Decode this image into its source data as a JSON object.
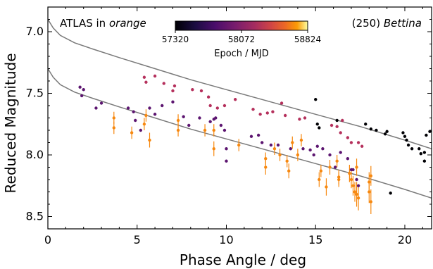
{
  "chart_data": {
    "type": "scatter",
    "xlabel": "Phase Angle / deg",
    "ylabel": "Reduced Magnitude",
    "xlim": [
      0,
      21.5
    ],
    "ylim": [
      8.6,
      6.8
    ],
    "y_inverted": true,
    "xticks": [
      0,
      5,
      10,
      15,
      20
    ],
    "yticks": [
      7.0,
      7.5,
      8.0,
      8.5
    ],
    "grid": false,
    "annotations": {
      "left_prefix": "ATLAS in ",
      "left_italic": "orange",
      "right_prefix": "(250) ",
      "right_italic": "Bettina"
    },
    "colorbar": {
      "label": "Epoch / MJD",
      "min": 57320,
      "max": 58824,
      "ticks": [
        "57320",
        "58072",
        "58824"
      ],
      "colormap": "inferno"
    },
    "model_curves": [
      {
        "x": [
          0,
          0.3,
          0.7,
          1.5,
          2.5,
          4,
          6,
          8,
          10,
          12.5,
          15,
          17.5,
          20,
          21.5
        ],
        "y": [
          6.9,
          6.97,
          7.03,
          7.09,
          7.14,
          7.21,
          7.3,
          7.39,
          7.47,
          7.57,
          7.67,
          7.77,
          7.88,
          7.95
        ]
      },
      {
        "x": [
          0,
          0.3,
          0.7,
          1.5,
          2.5,
          4,
          6,
          8,
          10,
          12.5,
          15,
          17.5,
          20,
          21.5
        ],
        "y": [
          7.3,
          7.37,
          7.43,
          7.49,
          7.54,
          7.61,
          7.7,
          7.79,
          7.87,
          7.97,
          8.07,
          8.17,
          8.28,
          8.35
        ]
      }
    ],
    "series": [
      {
        "name": "ATLAS",
        "color": "#f7880f",
        "points": [
          [
            3.7,
            7.7,
            0.05
          ],
          [
            3.7,
            7.78,
            0.05
          ],
          [
            4.7,
            7.82,
            0.05
          ],
          [
            5.4,
            7.75,
            0.05
          ],
          [
            5.5,
            7.68,
            0.05
          ],
          [
            5.7,
            7.88,
            0.06
          ],
          [
            7.3,
            7.72,
            0.05
          ],
          [
            7.3,
            7.8,
            0.05
          ],
          [
            8.8,
            7.8,
            0.05
          ],
          [
            9.3,
            7.8,
            0.05
          ],
          [
            9.3,
            7.95,
            0.06
          ],
          [
            10.7,
            7.92,
            0.05
          ],
          [
            12.2,
            8.03,
            0.05
          ],
          [
            12.2,
            8.1,
            0.06
          ],
          [
            12.7,
            7.95,
            0.05
          ],
          [
            13.0,
            8.0,
            0.05
          ],
          [
            13.4,
            8.05,
            0.05
          ],
          [
            13.5,
            8.13,
            0.06
          ],
          [
            13.7,
            7.9,
            0.05
          ],
          [
            14.0,
            8.0,
            0.05
          ],
          [
            14.2,
            7.88,
            0.05
          ],
          [
            15.2,
            8.2,
            0.06
          ],
          [
            15.3,
            8.13,
            0.05
          ],
          [
            15.6,
            8.26,
            0.07
          ],
          [
            15.8,
            8.1,
            0.06
          ],
          [
            16.2,
            8.05,
            0.05
          ],
          [
            16.3,
            8.18,
            0.06
          ],
          [
            16.3,
            8.2,
            0.06
          ],
          [
            16.9,
            8.15,
            0.07
          ],
          [
            17.0,
            8.2,
            0.07
          ],
          [
            17.1,
            8.25,
            0.08
          ],
          [
            17.2,
            8.3,
            0.08
          ],
          [
            17.3,
            8.1,
            0.07
          ],
          [
            17.3,
            8.32,
            0.1
          ],
          [
            17.4,
            8.35,
            0.1
          ],
          [
            18.0,
            8.22,
            0.08
          ],
          [
            18.0,
            8.3,
            0.09
          ],
          [
            18.1,
            8.38,
            0.1
          ],
          [
            18.1,
            8.17,
            0.08
          ]
        ]
      },
      {
        "name": "epoch",
        "color": "#5c1570",
        "points": [
          [
            1.8,
            7.45
          ],
          [
            2.0,
            7.47
          ],
          [
            1.9,
            7.52
          ],
          [
            2.7,
            7.62
          ],
          [
            3.0,
            7.58
          ],
          [
            4.5,
            7.62
          ],
          [
            4.8,
            7.65
          ],
          [
            4.9,
            7.72
          ],
          [
            5.2,
            7.8
          ],
          [
            5.7,
            7.62
          ],
          [
            6.0,
            7.67
          ],
          [
            6.4,
            7.6
          ],
          [
            7.0,
            7.57
          ],
          [
            7.6,
            7.69
          ],
          [
            7.9,
            7.76
          ],
          [
            8.5,
            7.7
          ],
          [
            9.1,
            7.73
          ],
          [
            9.3,
            7.71
          ],
          [
            9.4,
            7.7
          ],
          [
            9.7,
            7.76
          ],
          [
            9.9,
            7.8
          ],
          [
            10.0,
            7.95
          ],
          [
            10.0,
            8.05
          ],
          [
            11.4,
            7.85
          ],
          [
            11.8,
            7.84
          ],
          [
            12.0,
            7.9
          ],
          [
            12.5,
            7.92
          ],
          [
            12.9,
            7.92
          ],
          [
            13.6,
            7.95
          ],
          [
            14.3,
            7.95
          ],
          [
            14.7,
            7.96
          ],
          [
            14.9,
            8.0
          ],
          [
            15.1,
            7.93
          ],
          [
            15.4,
            7.95
          ],
          [
            15.8,
            8.0
          ],
          [
            16.1,
            8.1
          ],
          [
            16.4,
            7.98
          ],
          [
            16.8,
            8.03
          ],
          [
            17.0,
            8.12
          ],
          [
            17.1,
            8.12
          ],
          [
            17.3,
            8.2
          ],
          [
            17.4,
            8.25
          ]
        ]
      },
      {
        "name": "epoch",
        "color": "#b5305c",
        "points": [
          [
            5.4,
            7.37
          ],
          [
            6.0,
            7.36
          ],
          [
            5.5,
            7.41
          ],
          [
            6.5,
            7.42
          ],
          [
            7.0,
            7.48
          ],
          [
            7.1,
            7.44
          ],
          [
            8.1,
            7.47
          ],
          [
            8.6,
            7.48
          ],
          [
            9.0,
            7.53
          ],
          [
            9.1,
            7.6
          ],
          [
            9.5,
            7.62
          ],
          [
            9.9,
            7.6
          ],
          [
            10.5,
            7.55
          ],
          [
            11.5,
            7.63
          ],
          [
            11.9,
            7.67
          ],
          [
            12.3,
            7.66
          ],
          [
            12.6,
            7.65
          ],
          [
            13.1,
            7.58
          ],
          [
            13.3,
            7.68
          ],
          [
            14.1,
            7.71
          ],
          [
            14.4,
            7.7
          ],
          [
            15.9,
            7.76
          ],
          [
            16.2,
            7.77
          ],
          [
            16.4,
            7.82
          ],
          [
            16.5,
            7.72
          ],
          [
            16.8,
            7.86
          ],
          [
            17.0,
            7.9
          ],
          [
            17.4,
            7.9
          ],
          [
            17.6,
            7.93
          ]
        ]
      },
      {
        "name": "epoch",
        "color": "#000004",
        "points": [
          [
            15.1,
            7.75
          ],
          [
            15.2,
            7.78
          ],
          [
            18.4,
            7.8
          ],
          [
            18.9,
            7.83
          ],
          [
            19.0,
            7.81
          ],
          [
            19.9,
            7.82
          ],
          [
            20.0,
            7.85
          ],
          [
            20.1,
            7.88
          ],
          [
            20.2,
            7.92
          ],
          [
            20.4,
            7.95
          ],
          [
            20.8,
            7.95
          ],
          [
            20.9,
            7.99
          ],
          [
            21.1,
            7.98
          ],
          [
            21.4,
            7.81
          ],
          [
            21.2,
            7.84
          ],
          [
            21.1,
            8.05
          ],
          [
            15.0,
            7.55
          ],
          [
            16.2,
            7.72
          ],
          [
            17.8,
            7.75
          ],
          [
            18.1,
            7.79
          ],
          [
            19.2,
            8.31
          ]
        ]
      }
    ]
  }
}
